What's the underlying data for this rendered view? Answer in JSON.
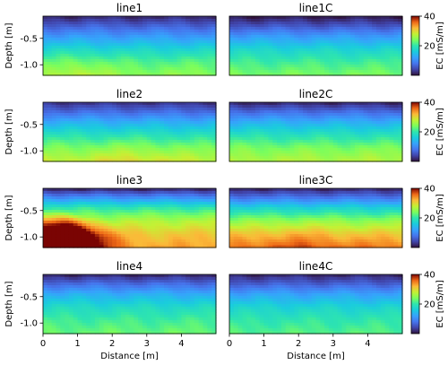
{
  "figure": {
    "xlabel": "Distance [m]",
    "ylabel": "Depth [m]",
    "colorbar_label": "EC [mS/m]",
    "colormap": "turbo",
    "clim": [
      0,
      40
    ],
    "colorbar_ticks": [
      "20",
      "40"
    ],
    "colorbar_tick_values": [
      20,
      40
    ],
    "xticks": [
      "0",
      "1",
      "2",
      "3",
      "4"
    ],
    "xtick_values": [
      0,
      1,
      2,
      3,
      4
    ],
    "yticks": [
      "-0.5",
      "-1.0"
    ],
    "ytick_values": [
      -0.5,
      -1.0
    ]
  },
  "chart_data": [
    {
      "type": "heatmap",
      "title": "line1",
      "xlim": [
        0,
        5
      ],
      "ylim": [
        -1.2,
        -0.08
      ],
      "depth_ec_profile": [
        [
          -0.1,
          2
        ],
        [
          -0.25,
          6
        ],
        [
          -0.45,
          11
        ],
        [
          -0.7,
          17
        ],
        [
          -0.95,
          22
        ],
        [
          -1.2,
          25
        ]
      ],
      "spatial_variation": "gradual; slightly higher EC at depth near x=0.5-1.5"
    },
    {
      "type": "heatmap",
      "title": "line1C",
      "xlim": [
        0,
        5
      ],
      "ylim": [
        -1.2,
        -0.08
      ],
      "depth_ec_profile": [
        [
          -0.1,
          1
        ],
        [
          -0.25,
          5
        ],
        [
          -0.45,
          11
        ],
        [
          -0.7,
          17
        ],
        [
          -0.95,
          21
        ],
        [
          -1.2,
          24
        ]
      ],
      "spatial_variation": "laterally uniform"
    },
    {
      "type": "heatmap",
      "title": "line2",
      "xlim": [
        0,
        5
      ],
      "ylim": [
        -1.2,
        -0.08
      ],
      "depth_ec_profile": [
        [
          -0.1,
          3
        ],
        [
          -0.25,
          7
        ],
        [
          -0.45,
          13
        ],
        [
          -0.7,
          19
        ],
        [
          -0.95,
          24
        ],
        [
          -1.2,
          28
        ]
      ],
      "spatial_variation": "gradual; slightly higher EC at depth toward x=2-3"
    },
    {
      "type": "heatmap",
      "title": "line2C",
      "xlim": [
        0,
        5
      ],
      "ylim": [
        -1.2,
        -0.08
      ],
      "depth_ec_profile": [
        [
          -0.1,
          2
        ],
        [
          -0.25,
          7
        ],
        [
          -0.45,
          13
        ],
        [
          -0.7,
          19
        ],
        [
          -0.95,
          24
        ],
        [
          -1.2,
          27
        ]
      ],
      "spatial_variation": "laterally uniform"
    },
    {
      "type": "heatmap",
      "title": "line3",
      "xlim": [
        0,
        5
      ],
      "ylim": [
        -1.2,
        -0.08
      ],
      "depth_ec_profile": [
        [
          -0.1,
          2
        ],
        [
          -0.25,
          10
        ],
        [
          -0.45,
          20
        ],
        [
          -0.7,
          27
        ],
        [
          -0.95,
          31
        ],
        [
          -1.2,
          33
        ]
      ],
      "spatial_variation": "strong anomaly: EC ~40 below -0.7 m near x=0.3-1.3, conductive zone thinning toward x=5"
    },
    {
      "type": "heatmap",
      "title": "line3C",
      "xlim": [
        0,
        5
      ],
      "ylim": [
        -1.2,
        -0.08
      ],
      "depth_ec_profile": [
        [
          -0.1,
          2
        ],
        [
          -0.25,
          8
        ],
        [
          -0.45,
          17
        ],
        [
          -0.7,
          25
        ],
        [
          -0.95,
          31
        ],
        [
          -1.2,
          35
        ]
      ],
      "spatial_variation": "laterally uniform, slightly higher EC toward x=1-3"
    },
    {
      "type": "heatmap",
      "title": "line4",
      "xlim": [
        0,
        5
      ],
      "ylim": [
        -1.2,
        -0.08
      ],
      "depth_ec_profile": [
        [
          -0.1,
          2
        ],
        [
          -0.25,
          7
        ],
        [
          -0.45,
          13
        ],
        [
          -0.7,
          18
        ],
        [
          -0.95,
          21
        ],
        [
          -1.2,
          23
        ]
      ],
      "spatial_variation": "laterally uniform"
    },
    {
      "type": "heatmap",
      "title": "line4C",
      "xlim": [
        0,
        5
      ],
      "ylim": [
        -1.2,
        -0.08
      ],
      "depth_ec_profile": [
        [
          -0.1,
          2
        ],
        [
          -0.25,
          6
        ],
        [
          -0.45,
          12
        ],
        [
          -0.7,
          17
        ],
        [
          -0.95,
          20
        ],
        [
          -1.2,
          22
        ]
      ],
      "spatial_variation": "laterally uniform"
    }
  ]
}
